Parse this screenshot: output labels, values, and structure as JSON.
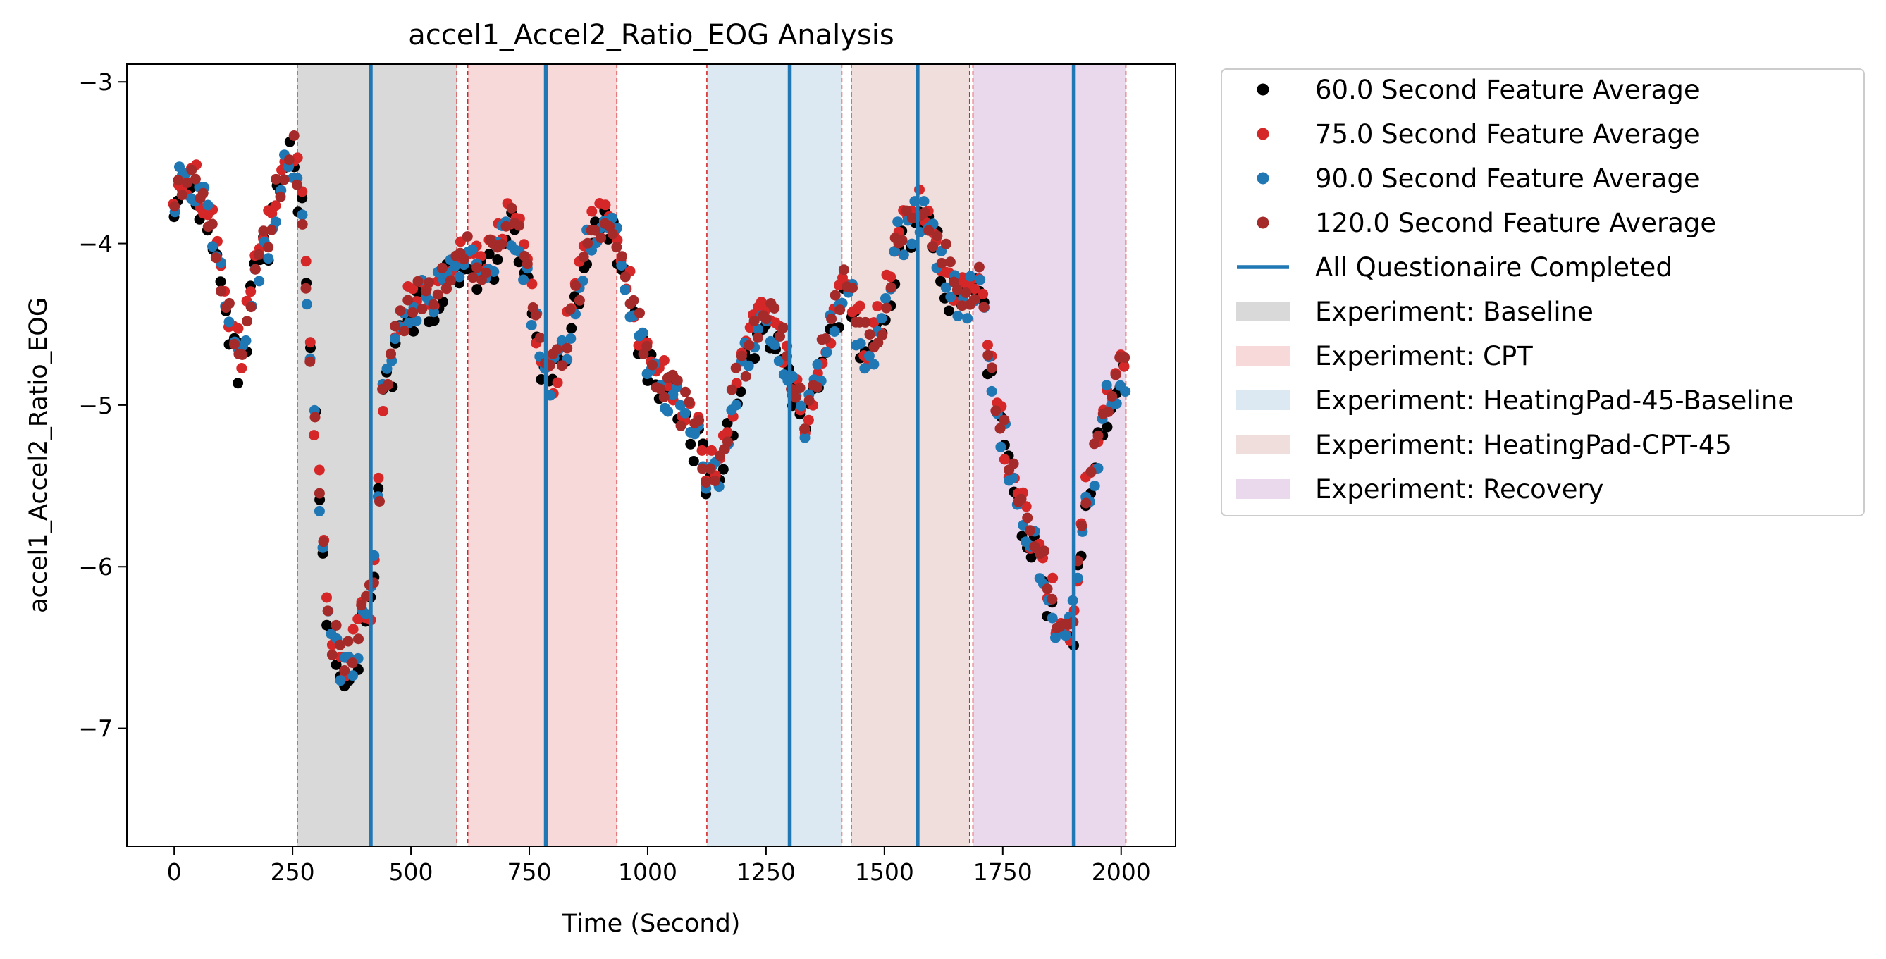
{
  "chart_data": {
    "type": "scatter",
    "title": "accel1_Accel2_Ratio_EOG Analysis",
    "xlabel": "Time (Second)",
    "ylabel": "accel1_Accel2_Ratio_EOG",
    "xlim": [
      -100,
      2115
    ],
    "ylim": [
      -7.73,
      -2.89
    ],
    "x_ticks": [
      0,
      250,
      500,
      750,
      1000,
      1250,
      1500,
      1750,
      2000
    ],
    "y_ticks": [
      -3,
      -4,
      -5,
      -6,
      -7
    ],
    "grid": false,
    "legend_position": "outside-right",
    "series": [
      {
        "name": "60.0 Second Feature Average",
        "color": "#000000",
        "offset": -0.045,
        "seed": 11
      },
      {
        "name": "75.0 Second Feature Average",
        "color": "#d62728",
        "offset": 0.035,
        "seed": 23
      },
      {
        "name": "90.0 Second Feature Average",
        "color": "#1f77b4",
        "offset": -0.015,
        "seed": 37
      },
      {
        "name": "120.0 Second Feature Average",
        "color": "#a52a2a",
        "offset": 0.02,
        "seed": 51
      }
    ],
    "trend": [
      [
        0,
        -3.65
      ],
      [
        40,
        -3.6
      ],
      [
        80,
        -3.9
      ],
      [
        110,
        -4.35
      ],
      [
        140,
        -4.75
      ],
      [
        170,
        -4.2
      ],
      [
        200,
        -3.95
      ],
      [
        230,
        -3.55
      ],
      [
        250,
        -3.4
      ],
      [
        270,
        -3.8
      ],
      [
        290,
        -4.8
      ],
      [
        310,
        -5.7
      ],
      [
        330,
        -6.4
      ],
      [
        350,
        -6.6
      ],
      [
        380,
        -6.55
      ],
      [
        400,
        -6.35
      ],
      [
        420,
        -6.2
      ],
      [
        440,
        -5.0
      ],
      [
        470,
        -4.6
      ],
      [
        500,
        -4.4
      ],
      [
        530,
        -4.3
      ],
      [
        560,
        -4.3
      ],
      [
        590,
        -4.15
      ],
      [
        620,
        -4.1
      ],
      [
        650,
        -4.15
      ],
      [
        680,
        -4.05
      ],
      [
        710,
        -3.85
      ],
      [
        740,
        -4.1
      ],
      [
        770,
        -4.6
      ],
      [
        790,
        -4.9
      ],
      [
        820,
        -4.7
      ],
      [
        850,
        -4.3
      ],
      [
        880,
        -3.95
      ],
      [
        910,
        -3.85
      ],
      [
        940,
        -4.0
      ],
      [
        970,
        -4.45
      ],
      [
        1000,
        -4.7
      ],
      [
        1030,
        -4.85
      ],
      [
        1060,
        -5.0
      ],
      [
        1090,
        -5.1
      ],
      [
        1120,
        -5.35
      ],
      [
        1150,
        -5.45
      ],
      [
        1180,
        -5.0
      ],
      [
        1210,
        -4.7
      ],
      [
        1240,
        -4.5
      ],
      [
        1270,
        -4.5
      ],
      [
        1300,
        -4.8
      ],
      [
        1330,
        -5.1
      ],
      [
        1360,
        -4.8
      ],
      [
        1400,
        -4.4
      ],
      [
        1420,
        -4.2
      ],
      [
        1440,
        -4.5
      ],
      [
        1470,
        -4.7
      ],
      [
        1500,
        -4.4
      ],
      [
        1530,
        -3.95
      ],
      [
        1560,
        -3.85
      ],
      [
        1580,
        -3.8
      ],
      [
        1610,
        -4.0
      ],
      [
        1640,
        -4.25
      ],
      [
        1670,
        -4.4
      ],
      [
        1700,
        -4.2
      ],
      [
        1730,
        -4.9
      ],
      [
        1760,
        -5.3
      ],
      [
        1790,
        -5.7
      ],
      [
        1820,
        -5.9
      ],
      [
        1850,
        -6.2
      ],
      [
        1880,
        -6.5
      ],
      [
        1900,
        -6.3
      ],
      [
        1920,
        -5.7
      ],
      [
        1950,
        -5.3
      ],
      [
        1970,
        -5.0
      ],
      [
        2000,
        -4.8
      ],
      [
        2010,
        -4.75
      ]
    ],
    "completion_lines": [
      415,
      785,
      1300,
      1570,
      1900
    ],
    "boundary_lines": [
      260,
      597,
      620,
      935,
      1125,
      1410,
      1430,
      1680,
      1687,
      2010
    ],
    "regions": [
      {
        "label": "Experiment: Baseline",
        "start": 260,
        "end": 597,
        "color": "#d9d9d9"
      },
      {
        "label": "Experiment: CPT",
        "start": 620,
        "end": 935,
        "color": "#f7d9da"
      },
      {
        "label": "Experiment: HeatingPad-45-Baseline",
        "start": 1125,
        "end": 1410,
        "color": "#dce9f3"
      },
      {
        "label": "Experiment: HeatingPad-CPT-45",
        "start": 1430,
        "end": 1680,
        "color": "#f0dedd"
      },
      {
        "label": "Experiment: Recovery",
        "start": 1687,
        "end": 2010,
        "color": "#ead9ec"
      }
    ],
    "completion_label": "All Questionaire Completed",
    "completion_color": "#1f77b4",
    "boundary_color": "#d62728"
  }
}
